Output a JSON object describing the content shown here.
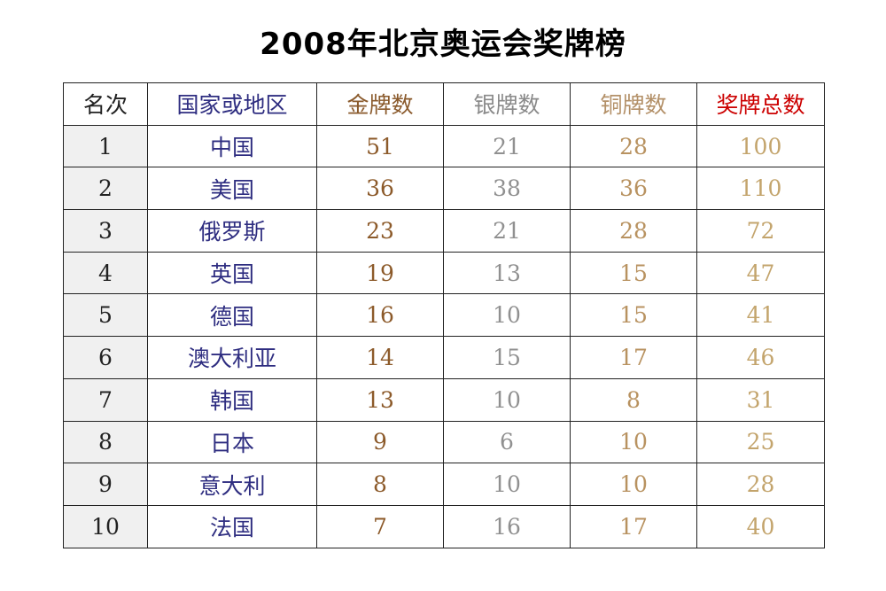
{
  "title": "2008年北京奥运会奖牌榜",
  "colors": {
    "country": "#2e2d80",
    "gold": "#8c5a2a",
    "silver": "#909090",
    "bronze": "#b89260",
    "total": "#c3a46c",
    "total_header": "#cc0000",
    "rank_background": "#f0f0f0"
  },
  "headers": {
    "rank": "名次",
    "country": "国家或地区",
    "gold": "金牌数",
    "silver": "银牌数",
    "bronze": "铜牌数",
    "total": "奖牌总数"
  },
  "rows": [
    {
      "rank": "1",
      "country": "中国",
      "gold": "51",
      "silver": "21",
      "bronze": "28",
      "total": "100"
    },
    {
      "rank": "2",
      "country": "美国",
      "gold": "36",
      "silver": "38",
      "bronze": "36",
      "total": "110"
    },
    {
      "rank": "3",
      "country": "俄罗斯",
      "gold": "23",
      "silver": "21",
      "bronze": "28",
      "total": "72"
    },
    {
      "rank": "4",
      "country": "英国",
      "gold": "19",
      "silver": "13",
      "bronze": "15",
      "total": "47"
    },
    {
      "rank": "5",
      "country": "德国",
      "gold": "16",
      "silver": "10",
      "bronze": "15",
      "total": "41"
    },
    {
      "rank": "6",
      "country": "澳大利亚",
      "gold": "14",
      "silver": "15",
      "bronze": "17",
      "total": "46"
    },
    {
      "rank": "7",
      "country": "韩国",
      "gold": "13",
      "silver": "10",
      "bronze": "8",
      "total": "31"
    },
    {
      "rank": "8",
      "country": "日本",
      "gold": "9",
      "silver": "6",
      "bronze": "10",
      "total": "25"
    },
    {
      "rank": "9",
      "country": "意大利",
      "gold": "8",
      "silver": "10",
      "bronze": "10",
      "total": "28"
    },
    {
      "rank": "10",
      "country": "法国",
      "gold": "7",
      "silver": "16",
      "bronze": "17",
      "total": "40"
    }
  ]
}
